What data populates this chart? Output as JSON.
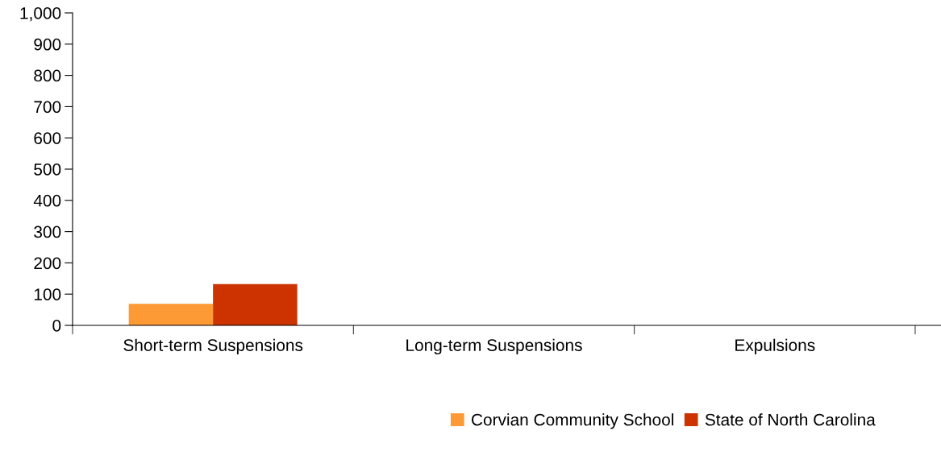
{
  "chart_data": {
    "type": "bar",
    "categories": [
      "Short-term Suspensions",
      "Long-term Suspensions",
      "Expulsions"
    ],
    "series": [
      {
        "name": "Corvian Community School",
        "color": "#fd9a35",
        "values": [
          69,
          0,
          0
        ]
      },
      {
        "name": "State of North Carolina",
        "color": "#cc3300",
        "values": [
          132,
          0,
          0
        ]
      }
    ],
    "ylim": [
      0,
      1000
    ],
    "yticks": [
      {
        "value": 0,
        "label": "0"
      },
      {
        "value": 100,
        "label": "100"
      },
      {
        "value": 200,
        "label": "200"
      },
      {
        "value": 300,
        "label": "300"
      },
      {
        "value": 400,
        "label": "400"
      },
      {
        "value": 500,
        "label": "500"
      },
      {
        "value": 600,
        "label": "600"
      },
      {
        "value": 700,
        "label": "700"
      },
      {
        "value": 800,
        "label": "800"
      },
      {
        "value": 900,
        "label": "900"
      },
      {
        "value": 1000,
        "label": "1,000"
      }
    ],
    "grid": false,
    "legend": "bottom"
  }
}
